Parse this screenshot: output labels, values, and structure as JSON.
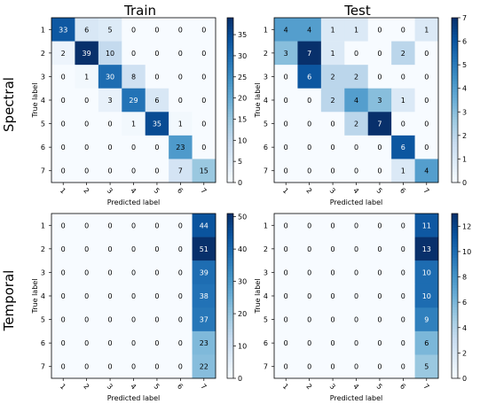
{
  "column_titles": [
    "Train",
    "Test"
  ],
  "row_titles": [
    "Spectral",
    "Temporal"
  ],
  "chart_data": [
    {
      "type": "heatmap",
      "position": "top-left",
      "xlabel": "Predicted label",
      "ylabel": "True label",
      "xticks": [
        "1",
        "2",
        "3",
        "4",
        "5",
        "6",
        "7"
      ],
      "yticks": [
        "1",
        "2",
        "3",
        "4",
        "5",
        "6",
        "7"
      ],
      "matrix": [
        [
          33,
          6,
          5,
          0,
          0,
          0,
          0
        ],
        [
          2,
          39,
          10,
          0,
          0,
          0,
          0
        ],
        [
          0,
          1,
          30,
          8,
          0,
          0,
          0
        ],
        [
          0,
          0,
          3,
          29,
          6,
          0,
          0
        ],
        [
          0,
          0,
          0,
          1,
          35,
          1,
          0
        ],
        [
          0,
          0,
          0,
          0,
          0,
          23,
          0
        ],
        [
          0,
          0,
          0,
          0,
          0,
          7,
          15
        ]
      ],
      "vmin": 0,
      "vmax": 39,
      "colorbar_ticks": [
        0,
        5,
        10,
        15,
        20,
        25,
        30,
        35
      ],
      "colormap": "Blues"
    },
    {
      "type": "heatmap",
      "position": "top-right",
      "xlabel": "Predicted label",
      "ylabel": "True label",
      "xticks": [
        "1",
        "2",
        "3",
        "4",
        "5",
        "6",
        "7"
      ],
      "yticks": [
        "1",
        "2",
        "3",
        "4",
        "5",
        "6",
        "7"
      ],
      "matrix": [
        [
          4,
          4,
          1,
          1,
          0,
          0,
          1
        ],
        [
          3,
          7,
          1,
          0,
          0,
          2,
          0
        ],
        [
          0,
          6,
          2,
          2,
          0,
          0,
          0
        ],
        [
          0,
          0,
          2,
          4,
          3,
          1,
          0
        ],
        [
          0,
          0,
          0,
          2,
          7,
          0,
          0
        ],
        [
          0,
          0,
          0,
          0,
          0,
          6,
          0
        ],
        [
          0,
          0,
          0,
          0,
          0,
          1,
          4
        ]
      ],
      "vmin": 0,
      "vmax": 7,
      "colorbar_ticks": [
        0,
        1,
        2,
        3,
        4,
        5,
        6,
        7
      ],
      "colormap": "Blues"
    },
    {
      "type": "heatmap",
      "position": "bottom-left",
      "xlabel": "Predicted label",
      "ylabel": "True label",
      "xticks": [
        "1",
        "2",
        "3",
        "4",
        "5",
        "6",
        "7"
      ],
      "yticks": [
        "1",
        "2",
        "3",
        "4",
        "5",
        "6",
        "7"
      ],
      "matrix": [
        [
          0,
          0,
          0,
          0,
          0,
          0,
          44
        ],
        [
          0,
          0,
          0,
          0,
          0,
          0,
          51
        ],
        [
          0,
          0,
          0,
          0,
          0,
          0,
          39
        ],
        [
          0,
          0,
          0,
          0,
          0,
          0,
          38
        ],
        [
          0,
          0,
          0,
          0,
          0,
          0,
          37
        ],
        [
          0,
          0,
          0,
          0,
          0,
          0,
          23
        ],
        [
          0,
          0,
          0,
          0,
          0,
          0,
          22
        ]
      ],
      "vmin": 0,
      "vmax": 51,
      "colorbar_ticks": [
        0,
        10,
        20,
        30,
        40,
        50
      ],
      "colormap": "Blues"
    },
    {
      "type": "heatmap",
      "position": "bottom-right",
      "xlabel": "Predicted label",
      "ylabel": "True label",
      "xticks": [
        "1",
        "2",
        "3",
        "4",
        "5",
        "6",
        "7"
      ],
      "yticks": [
        "1",
        "2",
        "3",
        "4",
        "5",
        "6",
        "7"
      ],
      "matrix": [
        [
          0,
          0,
          0,
          0,
          0,
          0,
          11
        ],
        [
          0,
          0,
          0,
          0,
          0,
          0,
          13
        ],
        [
          0,
          0,
          0,
          0,
          0,
          0,
          10
        ],
        [
          0,
          0,
          0,
          0,
          0,
          0,
          10
        ],
        [
          0,
          0,
          0,
          0,
          0,
          0,
          9
        ],
        [
          0,
          0,
          0,
          0,
          0,
          0,
          6
        ],
        [
          0,
          0,
          0,
          0,
          0,
          0,
          5
        ]
      ],
      "vmin": 0,
      "vmax": 13,
      "colorbar_ticks": [
        0,
        2,
        4,
        6,
        8,
        10,
        12
      ],
      "colormap": "Blues"
    }
  ]
}
